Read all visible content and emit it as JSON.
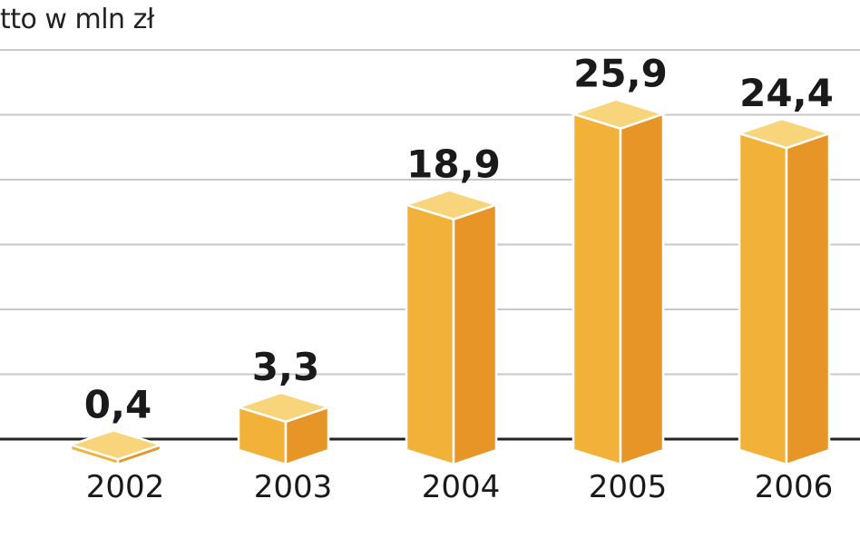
{
  "chart_data": {
    "type": "bar",
    "title": "tto w mln zł",
    "categories": [
      "2002",
      "2003",
      "2004",
      "2005",
      "2006"
    ],
    "values": [
      0.4,
      3.3,
      18.9,
      25.9,
      24.4
    ],
    "value_labels": [
      "0,4",
      "3,3",
      "18,9",
      "25,9",
      "24,4"
    ],
    "ylim": [
      0,
      30
    ],
    "grid": true,
    "colors": {
      "front": "#F2B23A",
      "side": "#E69526",
      "top": "#F8D47A",
      "edge": "#FFFFFF",
      "grid": "#C8C8C8",
      "axis": "#222222"
    }
  }
}
